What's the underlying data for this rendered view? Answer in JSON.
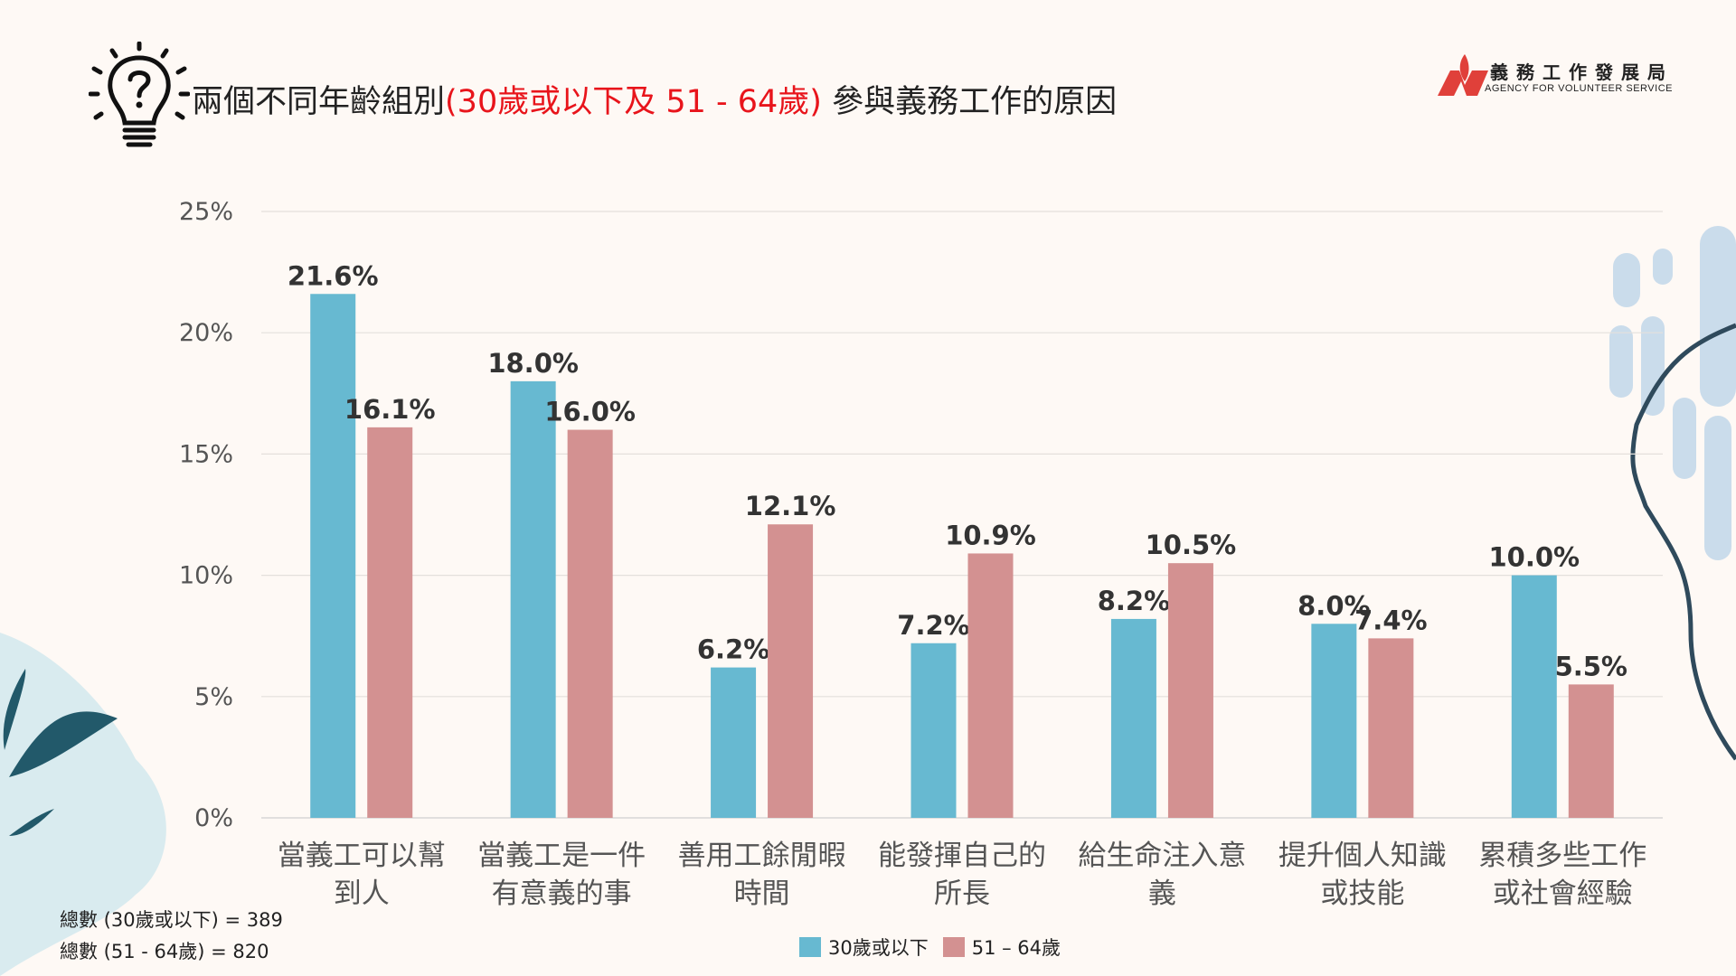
{
  "title": {
    "prefix": "兩個不同年齡組別",
    "highlight": "(30歲或以下及 51 - 64歲)",
    "suffix": " 參與義務工作的原因"
  },
  "logo": {
    "cn": "義務工作發展局",
    "en": "AGENCY FOR VOLUNTEER SERVICE"
  },
  "footnotes": [
    "總數 (30歲或以下)  = 389",
    "總數 (51 - 64歲)  = 820"
  ],
  "colors": {
    "series1": "#67B9D1",
    "series2": "#D39191",
    "highlight": "#E8141B",
    "background": "#FEF9F5"
  },
  "chart_data": {
    "type": "bar",
    "categories": [
      [
        "當義工可以幫",
        "到人"
      ],
      [
        "當義工是一件",
        "有意義的事"
      ],
      [
        "善用工餘閒暇",
        "時間"
      ],
      [
        "能發揮自己的",
        "所長"
      ],
      [
        "給生命注入意",
        "義"
      ],
      [
        "提升個人知識",
        "或技能"
      ],
      [
        "累積多些工作",
        "或社會經驗"
      ]
    ],
    "series": [
      {
        "name": "30歲或以下",
        "values": [
          21.6,
          18.0,
          6.2,
          7.2,
          8.2,
          8.0,
          10.0
        ],
        "labels": [
          "21.6%",
          "18.0%",
          "6.2%",
          "7.2%",
          "8.2%",
          "8.0%",
          "10.0%"
        ]
      },
      {
        "name": "51 – 64歲",
        "values": [
          16.1,
          16.0,
          12.1,
          10.9,
          10.5,
          7.4,
          5.5
        ],
        "labels": [
          "16.1%",
          "16.0%",
          "12.1%",
          "10.9%",
          "10.5%",
          "7.4%",
          "5.5%"
        ]
      }
    ],
    "yticks": [
      "0%",
      "5%",
      "10%",
      "15%",
      "20%",
      "25%"
    ],
    "ylim": [
      0,
      25
    ],
    "grid": true,
    "legend": "bottom"
  }
}
